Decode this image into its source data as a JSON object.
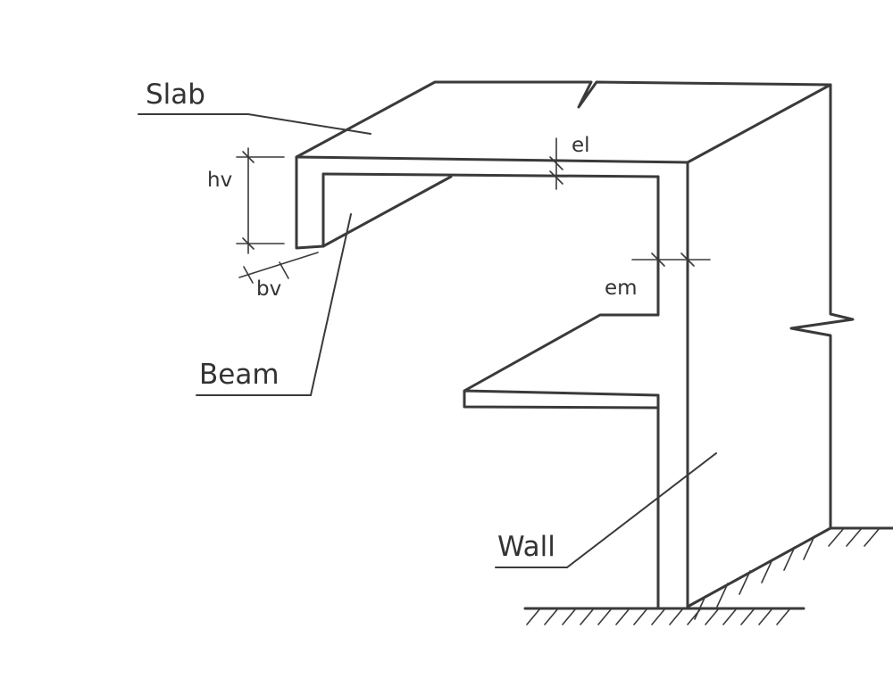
{
  "labels": {
    "slab": "Slab",
    "beam": "Beam",
    "wall": "Wall"
  },
  "dimensions": {
    "beam_height": "hv",
    "beam_width": "bv",
    "slab_thickness": "el",
    "wall_thickness": "em"
  }
}
